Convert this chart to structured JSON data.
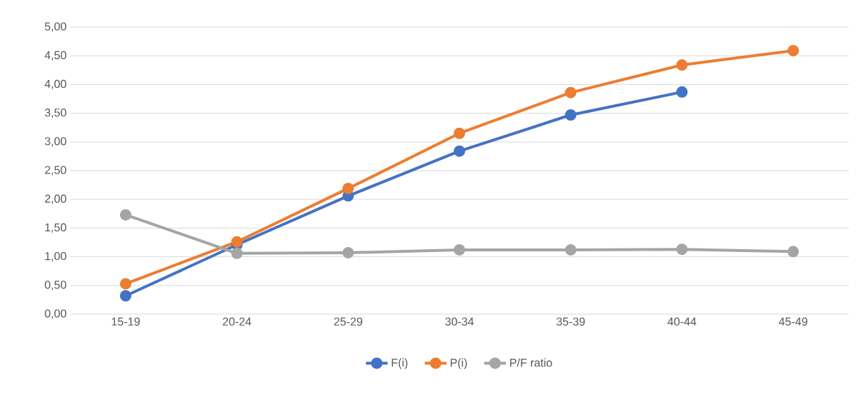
{
  "chart_data": {
    "type": "line",
    "categories": [
      "15-19",
      "20-24",
      "25-29",
      "30-34",
      "35-39",
      "40-44",
      "45-49"
    ],
    "series": [
      {
        "name": "F(i)",
        "color": "#4472c4",
        "values": [
          0.32,
          1.21,
          2.06,
          2.84,
          3.47,
          3.87,
          null
        ]
      },
      {
        "name": "P(i)",
        "color": "#ed7d31",
        "values": [
          0.53,
          1.26,
          2.19,
          3.15,
          3.86,
          4.34,
          4.59
        ]
      },
      {
        "name": "P/F ratio",
        "color": "#a5a5a5",
        "values": [
          1.73,
          1.06,
          1.07,
          1.12,
          1.12,
          1.13,
          1.09
        ]
      }
    ],
    "ylim": [
      0,
      5
    ],
    "yticks": [
      {
        "value": 0,
        "label": "0,00"
      },
      {
        "value": 0.5,
        "label": "0,50"
      },
      {
        "value": 1,
        "label": "1,00"
      },
      {
        "value": 1.5,
        "label": "1,50"
      },
      {
        "value": 2,
        "label": "2,00"
      },
      {
        "value": 2.5,
        "label": "2,50"
      },
      {
        "value": 3,
        "label": "3,00"
      },
      {
        "value": 3.5,
        "label": "3,50"
      },
      {
        "value": 4,
        "label": "4,00"
      },
      {
        "value": 4.5,
        "label": "4,50"
      },
      {
        "value": 5,
        "label": "5,00"
      }
    ],
    "grid": "y",
    "legend": "bottom",
    "marker": "circle",
    "line_style": "solid"
  }
}
